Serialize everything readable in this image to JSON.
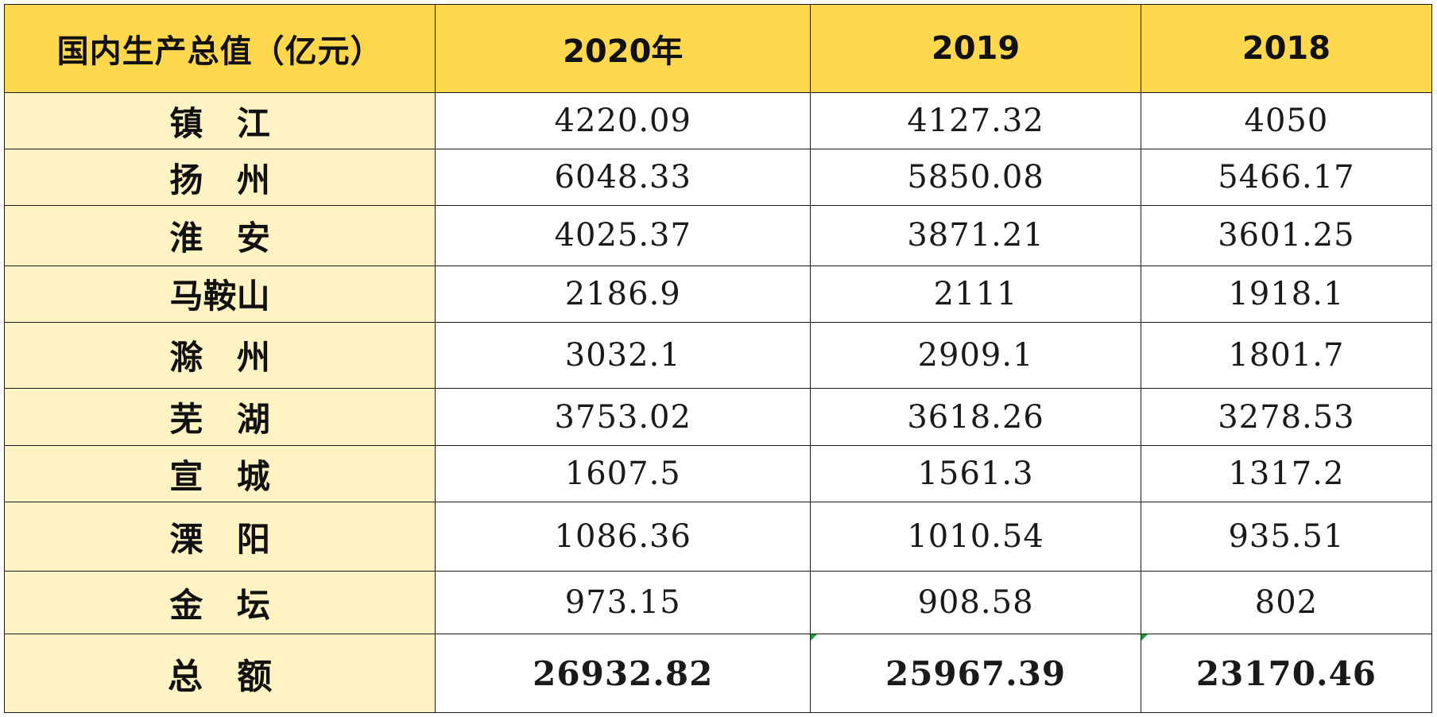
{
  "table": {
    "header": {
      "label": "国内生产总值（亿元）",
      "years": [
        "2020年",
        "2019",
        "2018"
      ]
    },
    "rows": [
      {
        "city": "镇 江",
        "v2020": "4220.09",
        "v2019": "4127.32",
        "v2018": "4050"
      },
      {
        "city": "扬 州",
        "v2020": "6048.33",
        "v2019": "5850.08",
        "v2018": "5466.17"
      },
      {
        "city": "淮 安",
        "v2020": "4025.37",
        "v2019": "3871.21",
        "v2018": "3601.25"
      },
      {
        "city": "马鞍山",
        "v2020": "2186.9",
        "v2019": "2111",
        "v2018": "1918.1"
      },
      {
        "city": "滁 州",
        "v2020": "3032.1",
        "v2019": "2909.1",
        "v2018": "1801.7"
      },
      {
        "city": "芜 湖",
        "v2020": "3753.02",
        "v2019": "3618.26",
        "v2018": "3278.53"
      },
      {
        "city": "宣 城",
        "v2020": "1607.5",
        "v2019": "1561.3",
        "v2018": "1317.2"
      },
      {
        "city": "溧 阳",
        "v2020": "1086.36",
        "v2019": "1010.54",
        "v2018": "935.51"
      },
      {
        "city": "金 坛",
        "v2020": "973.15",
        "v2019": "908.58",
        "v2018": "802"
      }
    ],
    "total": {
      "city": "总 额",
      "v2020": "26932.82",
      "v2019": "25967.39",
      "v2018": "23170.46"
    }
  },
  "colors": {
    "header_bg": "#ffd84e",
    "label_column_bg": "#fff3c4",
    "cell_bg": "#ffffff",
    "grid_line": "#1a1a1a",
    "error_flag": "#1e9e3a"
  }
}
